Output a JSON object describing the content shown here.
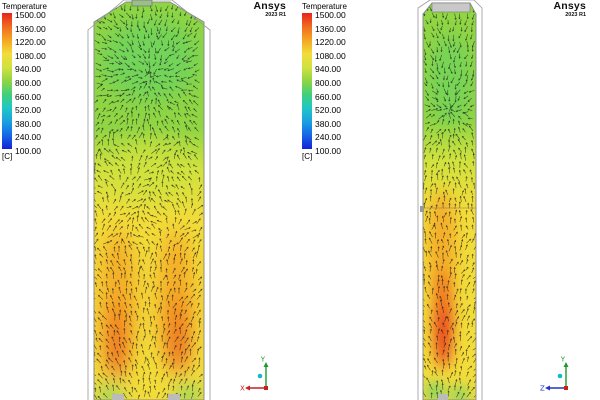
{
  "legend": {
    "title": "Temperature",
    "unit": "[C]",
    "ticks": [
      "1500.00",
      "1360.00",
      "1220.00",
      "1080.00",
      "940.00",
      "800.00",
      "660.00",
      "520.00",
      "380.00",
      "240.00",
      "100.00"
    ]
  },
  "brand": {
    "name": "Ansys",
    "version": "2023 R1"
  },
  "colors": {
    "c1500": "#e7231c",
    "c1360": "#f06b1f",
    "c1220": "#f5a623",
    "c1080": "#f2dc3a",
    "c940": "#cfe23e",
    "c800": "#8fd544",
    "c660": "#3fd07a",
    "c520": "#1ec7c7",
    "c380": "#1a9fe0",
    "c240": "#1766e6",
    "c100": "#1322d6"
  },
  "left_view": {
    "axes": {
      "horizontal": "X",
      "vertical": "Y"
    }
  },
  "right_view": {
    "axes": {
      "horizontal": "Z",
      "vertical": "Y"
    }
  }
}
